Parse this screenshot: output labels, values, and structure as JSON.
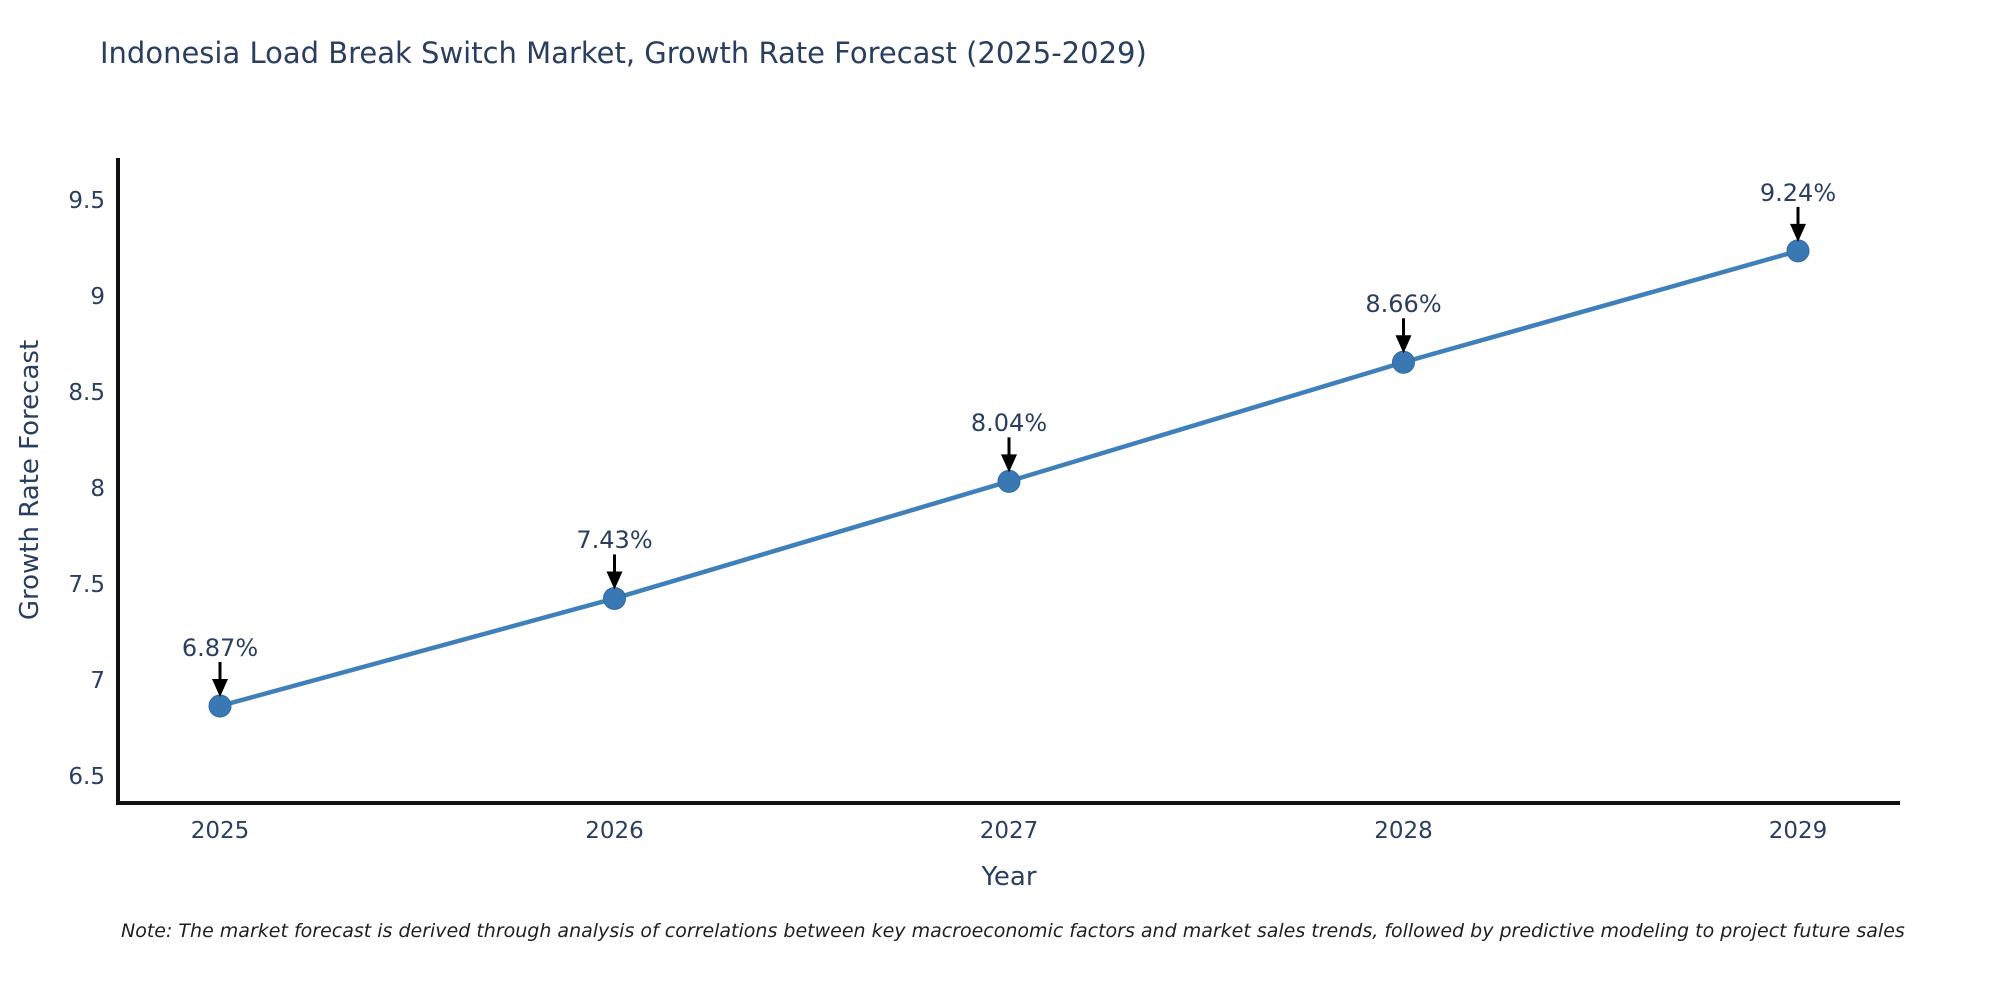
{
  "title": "Indonesia Load Break Switch Market, Growth Rate Forecast (2025-2029)",
  "note": "Note: The market forecast is derived through analysis of correlations between key macroeconomic factors and market sales trends, followed by predictive modeling to project future sales",
  "chart_data": {
    "type": "line",
    "title": "Indonesia Load Break Switch Market, Growth Rate Forecast (2025-2029)",
    "xlabel": "Year",
    "ylabel": "Growth Rate Forecast",
    "categories": [
      "2025",
      "2026",
      "2027",
      "2028",
      "2029"
    ],
    "series": [
      {
        "name": "Growth Rate Forecast",
        "values": [
          6.87,
          7.43,
          8.04,
          8.66,
          9.24
        ]
      }
    ],
    "point_labels": [
      "6.87%",
      "7.43%",
      "8.04%",
      "8.66%",
      "9.24%"
    ],
    "yticks": [
      6.5,
      7,
      7.5,
      8,
      8.5,
      9,
      9.5
    ],
    "ylim": [
      6.36,
      9.72
    ],
    "grid": false,
    "legend": "none",
    "annotation_arrows": true,
    "colors": {
      "line": "#3f80ba",
      "marker": "#3a78b4",
      "marker_edge": "#2f6ba3",
      "arrow": "#000000",
      "axis": "#111111",
      "label_text": "#2a3f5f",
      "note_text": "#1f1f1f"
    }
  }
}
